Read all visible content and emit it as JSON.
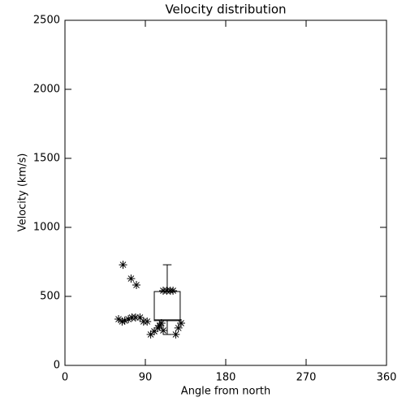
{
  "chart_data": {
    "type": "scatter",
    "title": "Velocity distribution",
    "x_label": "Angle from north",
    "y_label": "Velocity (km/s)",
    "x": [
      65,
      74,
      80,
      60,
      64,
      67,
      71,
      75,
      79,
      84,
      88,
      92,
      96,
      100,
      104,
      106,
      108,
      110,
      124,
      127,
      130,
      110,
      114,
      118,
      121
    ],
    "values": [
      729,
      629,
      582,
      335,
      318,
      324,
      335,
      347,
      347,
      347,
      318,
      318,
      224,
      247,
      271,
      288,
      306,
      253,
      224,
      271,
      306,
      541,
      541,
      541,
      541
    ],
    "color": "#000000",
    "box": {
      "x_range": [
        100,
        129
      ],
      "whisker_low": 224,
      "q1": 324,
      "median": 330,
      "q3": 535,
      "whisker_high": 729
    },
    "xlim": [
      0,
      360
    ],
    "xticks": [
      0,
      90,
      180,
      270,
      360
    ],
    "ylim": [
      0,
      2500
    ],
    "yticks": [
      0,
      500,
      1000,
      1500,
      2000,
      2500
    ]
  }
}
